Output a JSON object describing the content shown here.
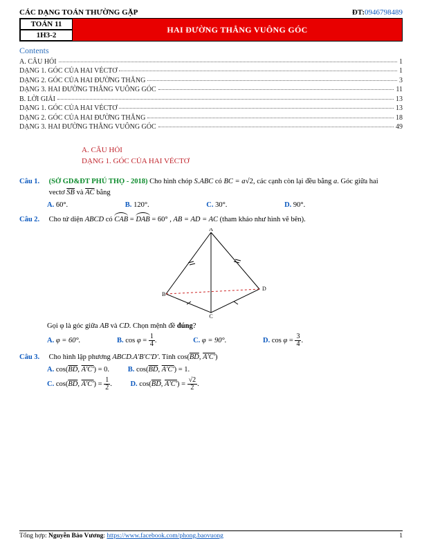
{
  "header": {
    "left": "CÁC DẠNG TOÁN THƯỜNG GẶP",
    "rightLabel": "ĐT:",
    "phone": "0946798489",
    "box1": "TOÁN 11",
    "box2": "1H3-2",
    "bandTitle": "HAI ĐƯỜNG THẲNG VUÔNG GÓC"
  },
  "contentsLabel": "Contents",
  "toc": [
    {
      "t": "A. CÂU HỎI",
      "p": "1"
    },
    {
      "t": "DẠNG 1. GÓC CỦA HAI VÉCTƠ",
      "p": "1"
    },
    {
      "t": "DẠNG 2. GÓC CỦA HAI ĐƯỜNG THẲNG",
      "p": "3"
    },
    {
      "t": "DẠNG 3. HAI ĐƯỜNG THẲNG VUÔNG GÓC",
      "p": "11"
    },
    {
      "t": "B. LỜI GIẢI",
      "p": "13"
    },
    {
      "t": "DẠNG 1. GÓC CỦA HAI VÉCTƠ",
      "p": "13"
    },
    {
      "t": "DẠNG 2. GÓC CỦA HAI ĐƯỜNG THẲNG",
      "p": "18"
    },
    {
      "t": "DẠNG 3. HAI ĐƯỜNG THẲNG VUÔNG GÓC",
      "p": "49"
    }
  ],
  "sectionA": "A. CÂU HỎI",
  "sectionA1": "DẠNG 1. GÓC CỦA HAI VÉCTƠ",
  "q1": {
    "n": "Câu 1.",
    "src": "(SỞ GD&ĐT PHÚ THỌ - 2018)",
    "t1": " Cho hình chóp ",
    "t2": " có ",
    "t3": ", các cạnh còn lại đều bằng ",
    "t4": ". Góc giữa hai vectơ ",
    "t5": " và ",
    "t6": " bằng",
    "a": "60°.",
    "b": "120°.",
    "c": "30°.",
    "d": "90°."
  },
  "q2": {
    "n": "Câu 2.",
    "t1": "Cho tứ diện ",
    "t2": " có ",
    "t3": " = 60° , ",
    "t4": " (tham khảo như hình vẽ bên).",
    "g": "Gọi φ là góc giữa ",
    "g2": " và ",
    "g3": ". Chọn mệnh đề ",
    "g4": "đúng",
    "g5": "?",
    "a": "φ = 60°.",
    "c": "φ = 90°."
  },
  "q3": {
    "n": "Câu 3.",
    "t1": "Cho hình lập phương ",
    "t2": ". Tính "
  },
  "opt": {
    "A": "A.",
    "B": "B.",
    "C": "C.",
    "D": "D."
  },
  "footer": {
    "left1": "Tổng hợp: ",
    "name": "Nguyễn Bảo Vương",
    "sep": ": ",
    "url": "https://www.facebook.com/phong.baovuong",
    "page": "1"
  },
  "colors": {
    "red": "#e80000",
    "blue": "#0b58be",
    "green": "#0a8a2a",
    "crimson": "#c0232b"
  }
}
